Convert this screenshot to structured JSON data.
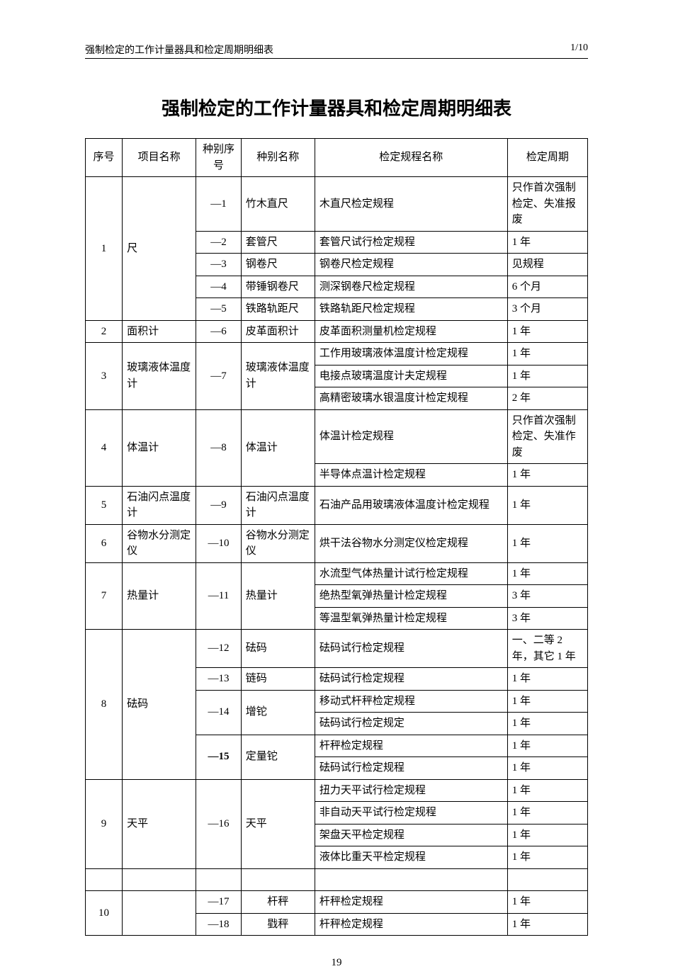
{
  "header": {
    "left": "强制检定的工作计量器具和检定周期明细表",
    "right": "1/10"
  },
  "title": "强制检定的工作计量器具和检定周期明细表",
  "columns": {
    "seq": "序号",
    "project": "项目名称",
    "typenum": "种别序号",
    "typename": "种别名称",
    "procedure": "检定规程名称",
    "period": "检定周期"
  },
  "rows": [
    {
      "seq": "1",
      "project": "尺",
      "typenum": "—1",
      "typename": "竹木直尺",
      "procedure": "木直尺检定规程",
      "period": "只作首次强制检定、失准报废"
    },
    {
      "typenum": "—2",
      "typename": "套管尺",
      "procedure": "套管尺试行检定规程",
      "period": "1 年"
    },
    {
      "typenum": "—3",
      "typename": "钢卷尺",
      "procedure": "钢卷尺检定规程",
      "period": "见规程"
    },
    {
      "typenum": "—4",
      "typename": "带锤钢卷尺",
      "procedure": "测深钢卷尺检定规程",
      "period": "6 个月"
    },
    {
      "typenum": "—5",
      "typename": "铁路轨距尺",
      "procedure": "铁路轨距尺检定规程",
      "period": "3 个月"
    },
    {
      "seq": "2",
      "project": "面积计",
      "typenum": "—6",
      "typename": "皮革面积计",
      "procedure": "皮革面积测量机检定规程",
      "period": "1 年"
    },
    {
      "seq": "3",
      "project": "玻璃液体温度计",
      "typenum": "—7",
      "typename": "玻璃液体温度计",
      "procedure": "工作用玻璃液体温度计检定规程",
      "period": "1 年"
    },
    {
      "procedure": "电接点玻璃温度计夫定规程",
      "period": "1 年"
    },
    {
      "procedure": "高精密玻璃水银温度计检定规程",
      "period": "2 年"
    },
    {
      "seq": "4",
      "project": "体温计",
      "typenum": "—8",
      "typename": "体温计",
      "procedure": "体温计检定规程",
      "period": "只作首次强制检定、失准作废"
    },
    {
      "procedure": "半导体点温计检定规程",
      "period": "1 年"
    },
    {
      "seq": "5",
      "project": "石油闪点温度计",
      "typenum": "—9",
      "typename": "石油闪点温度计",
      "procedure": "石油产品用玻璃液体温度计检定规程",
      "period": "1 年"
    },
    {
      "seq": "6",
      "project": "谷物水分测定仪",
      "typenum": "—10",
      "typename": "谷物水分测定仪",
      "procedure": "烘干法谷物水分测定仪检定规程",
      "period": "1 年"
    },
    {
      "seq": "7",
      "project": "热量计",
      "typenum": "—11",
      "typename": "热量计",
      "procedure": "水流型气体热量计试行检定规程",
      "period": "1 年"
    },
    {
      "procedure": "绝热型氧弹热量计检定规程",
      "period": "3 年"
    },
    {
      "procedure": "等温型氧弹热量计检定规程",
      "period": "3 年"
    },
    {
      "seq": "8",
      "project": "砝码",
      "typenum": "—12",
      "typename": "砝码",
      "procedure": "砝码试行检定规程",
      "period": "一、二等 2 年，其它 1 年"
    },
    {
      "typenum": "—13",
      "typename": "链码",
      "procedure": "砝码试行检定规程",
      "period": "1 年"
    },
    {
      "typenum": "—14",
      "typename": "增铊",
      "procedure": "移动式杆秤检定规程",
      "period": "1 年"
    },
    {
      "procedure": "砝码试行检定规定",
      "period": "1 年"
    },
    {
      "typenum": "—15",
      "typename": "定量铊",
      "procedure": "杆秤检定规程",
      "period": "1 年",
      "bold": true
    },
    {
      "procedure": "砝码试行检定规程",
      "period": "1 年"
    },
    {
      "seq": "9",
      "project": "天平",
      "typenum": "—16",
      "typename": "天平",
      "procedure": "扭力天平试行检定规程",
      "period": "1 年"
    },
    {
      "procedure": "非自动天平试行检定规程",
      "period": "1 年"
    },
    {
      "procedure": "架盘天平检定规程",
      "period": "1 年"
    },
    {
      "procedure": "液体比重天平检定规程",
      "period": "1 年"
    },
    {
      "empty": true
    },
    {
      "seq": "10",
      "project": "",
      "typenum": "—17",
      "typename": "杆秤",
      "procedure": "杆秤检定规程",
      "period": "1 年"
    },
    {
      "typenum": "—18",
      "typename": "戥秤",
      "procedure": "杆秤检定规程",
      "period": "1 年"
    }
  ],
  "pageNumber": "19"
}
